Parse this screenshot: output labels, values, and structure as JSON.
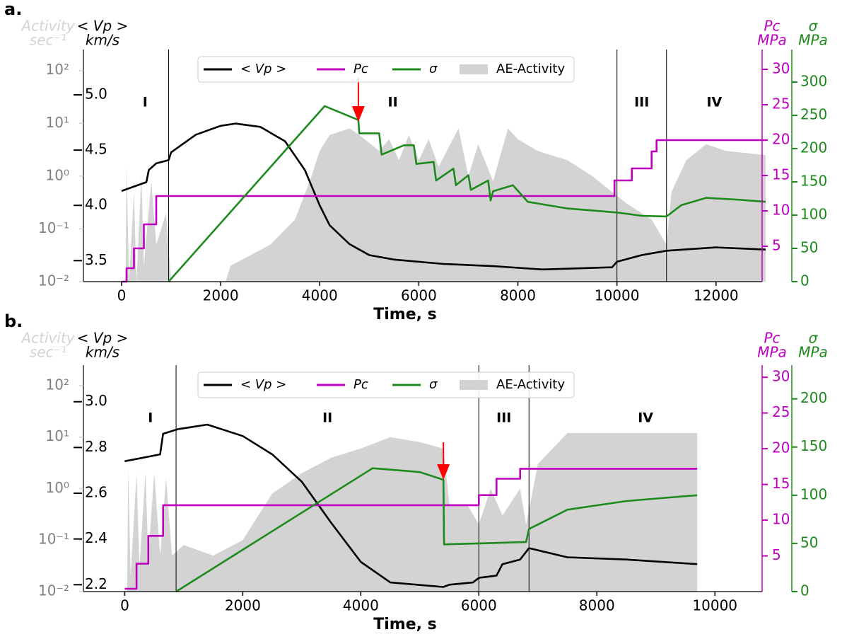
{
  "chart_data": [
    {
      "type": "line",
      "panel_label": "a.",
      "xlabel": "Time, s",
      "ylabel": [
        "Activity",
        "sec⁻¹"
      ],
      "y2label": [
        "< Vp >",
        "km/s"
      ],
      "y3label": [
        "Pc",
        "MPa"
      ],
      "y4label": [
        "σ",
        "MPa"
      ],
      "log_y": true,
      "legend": "upper center",
      "xlim": [
        -770,
        12930
      ],
      "xticks": [
        0,
        2000,
        4000,
        6000,
        8000,
        10000,
        12000
      ],
      "ylim": [
        0.01,
        250
      ],
      "yticks": [
        {
          "value": 0.01,
          "label": "10⁻²"
        },
        {
          "value": 0.1,
          "label": "10⁻¹"
        },
        {
          "value": 1,
          "label": "10⁰"
        },
        {
          "value": 10,
          "label": "10¹"
        },
        {
          "value": 100,
          "label": "10²"
        }
      ],
      "y2lim": [
        3.31,
        5.41
      ],
      "y2ticks": [
        3.5,
        {
          "value": 4,
          "label": "4.0"
        },
        4.5,
        {
          "value": 5,
          "label": "5.0"
        }
      ],
      "y3lim": [
        0,
        32.8
      ],
      "y3ticks": [
        5,
        10,
        15,
        20,
        25,
        30
      ],
      "y4lim": [
        0,
        349
      ],
      "y4ticks": [
        0,
        50,
        100,
        150,
        200,
        250,
        300
      ],
      "phase_labels": [
        "I",
        "II",
        "III",
        "IV"
      ],
      "phase_boundaries": [
        950,
        10000,
        11000
      ],
      "arrow_x": 4780,
      "series": [
        {
          "name": "< Vp >",
          "color": "#000000",
          "axis": "y2",
          "x": [
            0,
            500,
            550,
            700,
            950,
            1000,
            1500,
            2000,
            2300,
            2800,
            3300,
            3700,
            4000,
            4200,
            4600,
            5000,
            5500,
            6500,
            7500,
            8500,
            9900,
            10000,
            10500,
            11000,
            12000,
            13000
          ],
          "values": [
            4.13,
            4.21,
            4.32,
            4.38,
            4.41,
            4.48,
            4.64,
            4.72,
            4.74,
            4.71,
            4.58,
            4.32,
            4.0,
            3.82,
            3.65,
            3.55,
            3.51,
            3.47,
            3.45,
            3.42,
            3.44,
            3.49,
            3.55,
            3.59,
            3.62,
            3.6
          ]
        },
        {
          "name": "Pc",
          "color": "#bf00bf",
          "axis": "y3",
          "x": [
            0,
            100,
            100,
            250,
            250,
            450,
            450,
            700,
            700,
            9950,
            9950,
            10300,
            10300,
            10700,
            10700,
            10800,
            10800,
            13000
          ],
          "values": [
            0,
            0,
            1.9,
            1.9,
            4.7,
            4.7,
            8.1,
            8.1,
            12.1,
            12.1,
            14.3,
            14.3,
            16,
            16,
            18.4,
            18.4,
            20,
            20
          ]
        },
        {
          "name": "σ",
          "color": "#1e8a1e",
          "axis": "y4",
          "x": [
            950,
            4100,
            4780,
            4800,
            5200,
            5250,
            5700,
            5900,
            5950,
            6300,
            6350,
            6700,
            6750,
            7000,
            7050,
            7400,
            7450,
            7500,
            7900,
            8200,
            9000,
            10000,
            10500,
            11000,
            11300,
            11800,
            12500,
            13000
          ],
          "values": [
            0,
            264,
            243,
            223,
            223,
            191,
            205,
            205,
            177,
            180,
            152,
            170,
            145,
            160,
            138,
            152,
            122,
            136,
            145,
            120,
            110,
            104,
            99,
            98,
            115,
            126,
            123,
            120
          ]
        },
        {
          "name": "AE-Activity",
          "color": "#d3d3d3",
          "axis": "y",
          "kind": "area",
          "x": [
            0,
            80,
            100,
            150,
            250,
            300,
            400,
            450,
            600,
            700,
            900,
            1000,
            2100,
            2200,
            3000,
            3500,
            3800,
            4000,
            4200,
            4600,
            4800,
            5200,
            5400,
            5600,
            5800,
            6000,
            6200,
            6400,
            6800,
            7000,
            7200,
            7500,
            7800,
            8000,
            8400,
            9000,
            9500,
            9900,
            10200,
            10700,
            11000,
            11100,
            11400,
            11800,
            12200,
            13000
          ],
          "values": [
            0.01,
            0.01,
            1.7,
            0.01,
            0.5,
            0.01,
            1,
            0.02,
            0.8,
            0.05,
            0.2,
            0.01,
            0.01,
            0.02,
            0.05,
            0.15,
            0.8,
            3,
            6,
            8,
            6,
            3,
            5,
            2,
            6,
            2,
            5,
            1.5,
            8,
            1,
            4,
            0.8,
            8,
            5,
            3,
            2,
            1,
            0.5,
            0.3,
            0.15,
            0.05,
            0.5,
            2,
            4,
            3,
            2.5
          ]
        }
      ]
    },
    {
      "type": "line",
      "panel_label": "b.",
      "xlabel": "Time, s",
      "ylabel": [
        "Activity",
        "sec⁻¹"
      ],
      "y2label": [
        "< Vp >",
        "km/s"
      ],
      "y3label": [
        "Pc",
        "MPa"
      ],
      "y4label": [
        "σ",
        "MPa"
      ],
      "log_y": true,
      "legend": "upper center",
      "xlim": [
        -700,
        10800
      ],
      "xticks": [
        0,
        2000,
        4000,
        6000,
        8000,
        10000
      ],
      "ylim": [
        0.01,
        250
      ],
      "yticks": [
        {
          "value": 0.01,
          "label": "10⁻²"
        },
        {
          "value": 0.1,
          "label": "10⁻¹"
        },
        {
          "value": 1,
          "label": "10⁰"
        },
        {
          "value": 10,
          "label": "10¹"
        },
        {
          "value": 100,
          "label": "10²"
        }
      ],
      "y2lim": [
        2.17,
        3.16
      ],
      "y2ticks": [
        2.2,
        2.4,
        2.6,
        2.8,
        {
          "value": 3,
          "label": "3.0"
        }
      ],
      "y3lim": [
        0,
        31.7
      ],
      "y3ticks": [
        5,
        10,
        15,
        20,
        25,
        30
      ],
      "y4lim": [
        0,
        235
      ],
      "y4ticks": [
        0,
        50,
        100,
        150,
        200
      ],
      "phase_labels": [
        "I",
        "II",
        "III",
        "IV"
      ],
      "phase_boundaries": [
        870,
        6000,
        6850
      ],
      "arrow_x": 5400,
      "series": [
        {
          "name": "< Vp >",
          "color": "#000000",
          "axis": "y2",
          "x": [
            0,
            600,
            650,
            900,
            1400,
            2000,
            2500,
            3000,
            3500,
            4000,
            4500,
            5400,
            5500,
            5900,
            6000,
            6300,
            6400,
            6700,
            6850,
            7500,
            8500,
            9700
          ],
          "values": [
            2.74,
            2.77,
            2.86,
            2.88,
            2.9,
            2.85,
            2.77,
            2.65,
            2.47,
            2.3,
            2.21,
            2.19,
            2.2,
            2.21,
            2.23,
            2.24,
            2.29,
            2.31,
            2.36,
            2.32,
            2.31,
            2.29
          ]
        },
        {
          "name": "Pc",
          "color": "#bf00bf",
          "axis": "y3",
          "x": [
            0,
            200,
            200,
            400,
            400,
            650,
            650,
            6000,
            6000,
            6300,
            6300,
            6700,
            6700,
            9700
          ],
          "values": [
            0.4,
            0.4,
            3.9,
            3.9,
            7.8,
            7.8,
            12.1,
            12.1,
            13.5,
            13.5,
            15.8,
            15.8,
            17.2,
            17.2
          ]
        },
        {
          "name": "σ",
          "color": "#1e8a1e",
          "axis": "y4",
          "x": [
            870,
            4200,
            5000,
            5400,
            5410,
            6000,
            6800,
            6850,
            7500,
            8500,
            9700
          ],
          "values": [
            0,
            128,
            124,
            116,
            49,
            50,
            51.5,
            65,
            85,
            94,
            100
          ]
        },
        {
          "name": "AE-Activity",
          "color": "#d3d3d3",
          "axis": "y",
          "kind": "area",
          "x": [
            0,
            40,
            60,
            100,
            200,
            250,
            350,
            400,
            500,
            600,
            700,
            800,
            1000,
            1500,
            2000,
            2500,
            3000,
            3500,
            4000,
            4500,
            5000,
            5400,
            5500,
            5800,
            6000,
            6200,
            6400,
            6700,
            6800,
            7000,
            7500,
            8000,
            9000,
            9700
          ],
          "values": [
            0.01,
            0.01,
            2.4,
            0.02,
            2,
            0.03,
            2,
            0.05,
            2,
            0.05,
            1.6,
            0.05,
            0.08,
            0.05,
            0.1,
            0.8,
            2,
            4,
            6,
            10,
            8,
            6,
            0.5,
            0.5,
            0.2,
            1,
            0.3,
            1,
            0.2,
            3,
            12,
            12,
            12,
            12
          ]
        }
      ]
    }
  ]
}
